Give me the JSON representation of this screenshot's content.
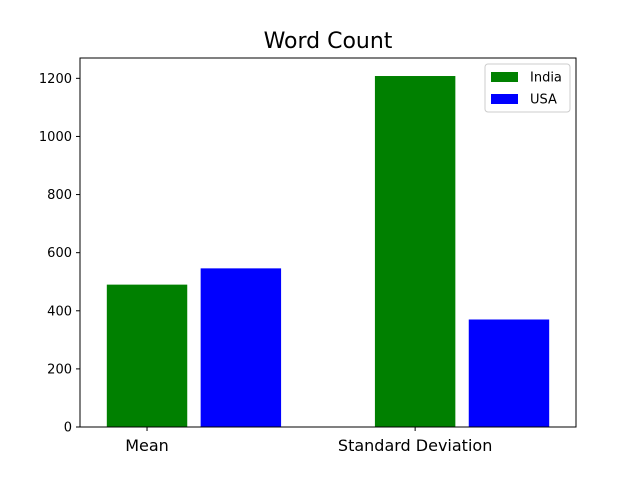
{
  "chart_data": {
    "type": "bar",
    "title": "Word Count",
    "xlabel": "",
    "ylabel": "",
    "categories": [
      "Mean",
      "Standard Deviation"
    ],
    "series": [
      {
        "name": "India",
        "color": "#008000",
        "values": [
          490,
          1208
        ]
      },
      {
        "name": "USA",
        "color": "#0000ff",
        "values": [
          546,
          370
        ]
      }
    ],
    "ylim": [
      0,
      1270
    ],
    "yticks": [
      0,
      200,
      400,
      600,
      800,
      1000,
      1200
    ],
    "legend_position": "top-right",
    "grid": false
  }
}
